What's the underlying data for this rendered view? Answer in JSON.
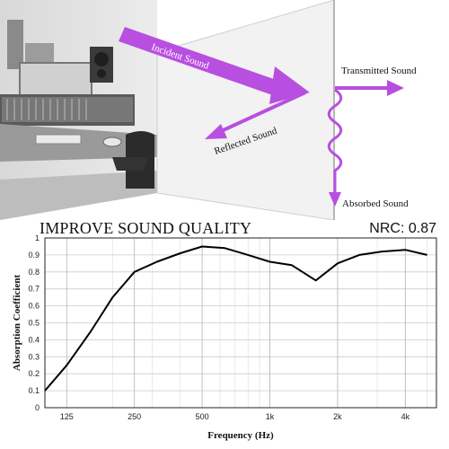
{
  "diagram": {
    "labels": {
      "incident": "Incident Sound",
      "transmitted": "Transmitted Sound",
      "reflected": "Reflected Sound",
      "absorbed": "Absorbed Sound"
    },
    "colors": {
      "arrow": "#b84fe0",
      "panel": "#f2f2f2"
    }
  },
  "header": {
    "title": "IMPROVE SOUND QUALITY",
    "nrc": "NRC: 0.87"
  },
  "chart_data": {
    "type": "line",
    "xlabel": "Frequency (Hz)",
    "ylabel": "Absorption Coefficient",
    "x_scale": "log",
    "xlim": [
      100,
      5500
    ],
    "ylim": [
      0,
      1
    ],
    "x_ticks": [
      {
        "value": 125,
        "label": "125"
      },
      {
        "value": 250,
        "label": "250"
      },
      {
        "value": 500,
        "label": "500"
      },
      {
        "value": 1000,
        "label": "1k"
      },
      {
        "value": 2000,
        "label": "2k"
      },
      {
        "value": 4000,
        "label": "4k"
      }
    ],
    "y_ticks": [
      {
        "value": 0,
        "label": "0"
      },
      {
        "value": 0.1,
        "label": "0.1"
      },
      {
        "value": 0.2,
        "label": "0.2"
      },
      {
        "value": 0.3,
        "label": "0.3"
      },
      {
        "value": 0.4,
        "label": "0.4"
      },
      {
        "value": 0.5,
        "label": "0.5"
      },
      {
        "value": 0.6,
        "label": "0.6"
      },
      {
        "value": 0.7,
        "label": "0.7"
      },
      {
        "value": 0.8,
        "label": "0.8"
      },
      {
        "value": 0.9,
        "label": "0.9"
      },
      {
        "value": 1,
        "label": "1"
      }
    ],
    "grid": true,
    "series": [
      {
        "x": [
          100,
          125,
          160,
          200,
          250,
          315,
          400,
          500,
          630,
          800,
          1000,
          1250,
          1600,
          2000,
          2500,
          3150,
          4000,
          5000
        ],
        "y": [
          0.1,
          0.25,
          0.45,
          0.65,
          0.8,
          0.86,
          0.91,
          0.95,
          0.94,
          0.9,
          0.86,
          0.84,
          0.75,
          0.85,
          0.9,
          0.92,
          0.93,
          0.9
        ],
        "color": "#000000"
      }
    ]
  }
}
